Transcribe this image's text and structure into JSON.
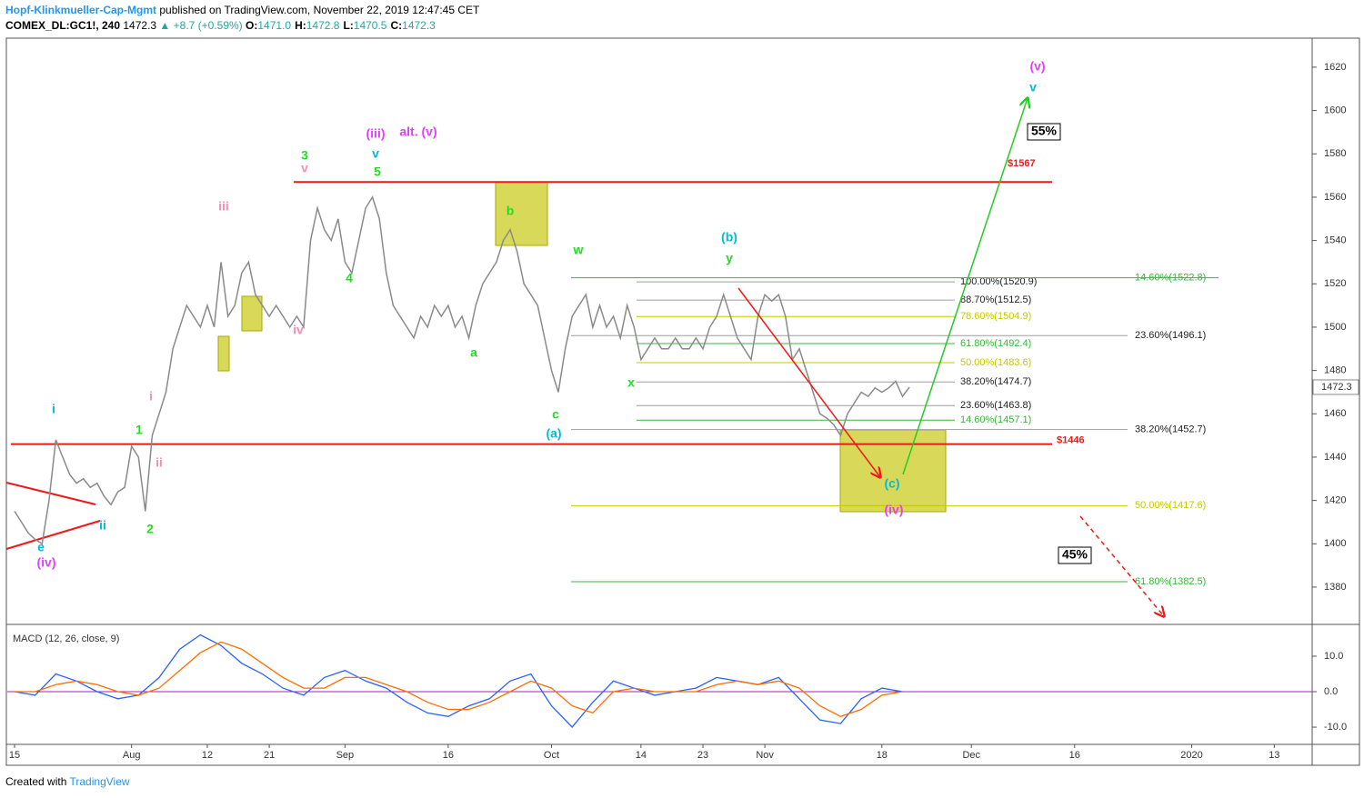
{
  "header": {
    "publisher": "Hopf-Klinkmueller-Cap-Mgmt",
    "published": "published on TradingView.com, November 22, 2019 12:47:45 CET",
    "symbol": "COMEX_DL:GC1!, 240",
    "last": "1472.3",
    "change": "▲ +8.7 (+0.59%)",
    "ohlc": [
      {
        "label": "O:",
        "value": "1471.0"
      },
      {
        "label": "H:",
        "value": "1472.8"
      },
      {
        "label": "L:",
        "value": "1470.5"
      },
      {
        "label": "C:",
        "value": "1472.3"
      }
    ]
  },
  "footer": {
    "text": "Created with",
    "brand": "TradingView"
  },
  "chart_data": [
    {
      "type": "line",
      "color": "#8a8a8a",
      "categories": [
        "15",
        null,
        null,
        null,
        null,
        null,
        null,
        null,
        null,
        null,
        null,
        null,
        null,
        null,
        null,
        null,
        null,
        "Aug",
        null,
        null,
        null,
        null,
        null,
        null,
        null,
        null,
        null,
        null,
        "12",
        null,
        null,
        null,
        null,
        null,
        null,
        null,
        null,
        "21",
        null,
        null,
        null,
        null,
        null,
        null,
        null,
        null,
        null,
        null,
        "Sep",
        null,
        null,
        null,
        null,
        null,
        null,
        null,
        null,
        null,
        null,
        null,
        null,
        null,
        null,
        "16",
        null,
        null,
        null,
        null,
        null,
        null,
        null,
        null,
        null,
        null,
        null,
        null,
        null,
        null,
        "Oct",
        null,
        null,
        null,
        null,
        null,
        null,
        null,
        null,
        null,
        null,
        null,
        null,
        "14",
        null,
        null,
        null,
        null,
        null,
        null,
        null,
        null,
        "23",
        null,
        null,
        null,
        null,
        null,
        null,
        null,
        null,
        "Nov",
        null,
        null,
        null,
        null,
        null,
        null,
        null,
        null,
        null,
        null,
        null,
        null,
        null,
        null,
        null,
        null,
        "18",
        null,
        null,
        null,
        null,
        null,
        null,
        null,
        null,
        null,
        null,
        null,
        null,
        "Dec",
        null,
        null,
        null,
        null,
        null,
        null,
        null,
        null,
        null,
        null,
        null,
        null,
        null,
        null,
        "16",
        null,
        null,
        null,
        null,
        null,
        null,
        null,
        null,
        null,
        null,
        null,
        null,
        null,
        null,
        null,
        null,
        "2020",
        null,
        null,
        null,
        null,
        null,
        null,
        null,
        null,
        null,
        null,
        null,
        "13"
      ],
      "values": [
        1415,
        1410,
        1405,
        1402,
        1400,
        1420,
        1448,
        1440,
        1432,
        1428,
        1430,
        1426,
        1428,
        1422,
        1418,
        1424,
        1426,
        1445,
        1440,
        1415,
        1450,
        1460,
        1470,
        1490,
        1500,
        1510,
        1505,
        1500,
        1510,
        1500,
        1530,
        1505,
        1510,
        1525,
        1530,
        1515,
        1510,
        1505,
        1510,
        1505,
        1500,
        1505,
        1500,
        1540,
        1555,
        1545,
        1540,
        1550,
        1530,
        1525,
        1540,
        1555,
        1560,
        1550,
        1525,
        1510,
        1505,
        1500,
        1495,
        1505,
        1500,
        1510,
        1505,
        1510,
        1500,
        1505,
        1495,
        1510,
        1520,
        1525,
        1530,
        1540,
        1545,
        1535,
        1520,
        1515,
        1510,
        1495,
        1480,
        1470,
        1490,
        1505,
        1510,
        1515,
        1500,
        1510,
        1500,
        1505,
        1495,
        1510,
        1500,
        1485,
        1490,
        1495,
        1490,
        1490,
        1495,
        1490,
        1490,
        1495,
        1490,
        1500,
        1505,
        1515,
        1505,
        1495,
        1490,
        1485,
        1505,
        1515,
        1512,
        1515,
        1505,
        1485,
        1490,
        1480,
        1470,
        1460,
        1458,
        1455,
        1450,
        1460,
        1465,
        1470,
        1468,
        1472,
        1470,
        1472,
        1475,
        1468,
        1472.3,
        null,
        null,
        null,
        null,
        null,
        null,
        null,
        null,
        null,
        null,
        null,
        null,
        null,
        null,
        null,
        null,
        null,
        null,
        null,
        null,
        null,
        null,
        null,
        null,
        null,
        null,
        null,
        null,
        null,
        null,
        null,
        null,
        null,
        null,
        null,
        null,
        null,
        null,
        null,
        null,
        null,
        null,
        null,
        null,
        null,
        null,
        null,
        null,
        null,
        null,
        null,
        null,
        null
      ],
      "last_price": 1472.3,
      "ylim": [
        1363.2,
        1633.4
      ],
      "yticks": [
        1380,
        1400,
        1420,
        1440,
        1460,
        1480,
        1500,
        1520,
        1540,
        1560,
        1580,
        1600,
        1620
      ],
      "levels": [
        {
          "label": "$1567",
          "value": 1567,
          "color": "#f01818"
        },
        {
          "label": "$1446",
          "value": 1446,
          "color": "#f01818"
        }
      ],
      "fib_levels": [
        {
          "label": "100.00%(1520.9)",
          "value": 1520.9,
          "color": "#9e9e9e"
        },
        {
          "label": "88.70%(1512.5)",
          "value": 1512.5,
          "color": "#9e9e9e"
        },
        {
          "label": "78.60%(1504.9)",
          "value": 1504.9,
          "color": "#c8c800"
        },
        {
          "label": "61.80%(1492.4)",
          "value": 1492.4,
          "color": "#3cb43c"
        },
        {
          "label": "50.00%(1483.6)",
          "value": 1483.6,
          "color": "#c8c800"
        },
        {
          "label": "38.20%(1474.7)",
          "value": 1474.7,
          "color": "#9e9e9e"
        },
        {
          "label": "23.60%(1463.8)",
          "value": 1463.8,
          "color": "#9e9e9e"
        },
        {
          "label": "14.60%(1457.1)",
          "value": 1457.1,
          "color": "#3cb43c"
        },
        {
          "label": "14.60%(1522.8)",
          "value": 1522.8,
          "color": "#3cb43c"
        },
        {
          "label": "23.60%(1496.1)",
          "value": 1496.1,
          "color": "#9e9e9e"
        },
        {
          "label": "38.20%(1452.7)",
          "value": 1452.7,
          "color": "#9e9e9e"
        },
        {
          "label": "50.00%(1417.6)",
          "value": 1417.6,
          "color": "#c8c800"
        },
        {
          "label": "61.80%(1382.5)",
          "value": 1382.5,
          "color": "#3cb43c"
        }
      ],
      "annotations": [
        {
          "text": "i",
          "color": "#00bcd4"
        },
        {
          "text": "ii",
          "color": "#00bcd4"
        },
        {
          "text": "e",
          "color": "#00bcd4"
        },
        {
          "text": "(iv)",
          "color": "#e040fb"
        },
        {
          "text": "1",
          "color": "#22dd22"
        },
        {
          "text": "2",
          "color": "#22dd22"
        },
        {
          "text": "i",
          "color": "#f48fb1"
        },
        {
          "text": "ii",
          "color": "#f48fb1"
        },
        {
          "text": "iii",
          "color": "#f48fb1"
        },
        {
          "text": "iv",
          "color": "#f48fb1"
        },
        {
          "text": "3",
          "color": "#22dd22"
        },
        {
          "text": "v",
          "color": "#f48fb1"
        },
        {
          "text": "(iii)",
          "color": "#e040fb"
        },
        {
          "text": "alt. (v)",
          "color": "#e040fb"
        },
        {
          "text": "v",
          "color": "#00bcd4"
        },
        {
          "text": "5",
          "color": "#22dd22"
        },
        {
          "text": "4",
          "color": "#22dd22"
        },
        {
          "text": "b",
          "color": "#22dd22"
        },
        {
          "text": "a",
          "color": "#22dd22"
        },
        {
          "text": "c",
          "color": "#22dd22"
        },
        {
          "text": "(a)",
          "color": "#00bcd4"
        },
        {
          "text": "w",
          "color": "#22dd22"
        },
        {
          "text": "x",
          "color": "#22dd22"
        },
        {
          "text": "(b)",
          "color": "#00bcd4"
        },
        {
          "text": "y",
          "color": "#22dd22"
        },
        {
          "text": "(c)",
          "color": "#00bcd4"
        },
        {
          "text": "(iv)",
          "color": "#e040fb"
        },
        {
          "text": "(v)",
          "color": "#e040fb"
        },
        {
          "text": "v",
          "color": "#00bcd4"
        },
        {
          "text": "55%",
          "color": "#000000"
        },
        {
          "text": "45%",
          "color": "#000000"
        }
      ]
    },
    {
      "type": "macd",
      "title": "MACD (12, 26, close, 9)",
      "categories": [
        null,
        null,
        null,
        null,
        null,
        null,
        null,
        null,
        null,
        null,
        null,
        null,
        null,
        null,
        null,
        null,
        null,
        null,
        null,
        null,
        null,
        null,
        null,
        null,
        null,
        null,
        null,
        null,
        null,
        null,
        null,
        null,
        null,
        null,
        null,
        null,
        null,
        null,
        null,
        null,
        null,
        null,
        null,
        null
      ],
      "series": [
        {
          "color": "#2962ff",
          "values": [
            0,
            -1,
            5,
            3,
            0,
            -2,
            -1,
            4,
            12,
            16,
            13,
            8,
            5,
            1,
            -1,
            4,
            6,
            3,
            1,
            -3,
            -6,
            -7,
            -4,
            -2,
            3,
            5,
            -4,
            -10,
            -3,
            3,
            1,
            -1,
            0,
            1,
            4,
            3,
            2,
            4,
            -2,
            -8,
            -9,
            -2,
            1,
            0
          ]
        },
        {
          "color": "#ff6d00",
          "values": [
            0,
            0,
            2,
            3,
            2,
            0,
            -1,
            1,
            6,
            11,
            14,
            12,
            8,
            4,
            1,
            1,
            4,
            4,
            2,
            0,
            -3,
            -5,
            -5,
            -3,
            0,
            3,
            1,
            -4,
            -6,
            0,
            1,
            0,
            0,
            0,
            2,
            3,
            2,
            3,
            1,
            -4,
            -7,
            -5,
            -1,
            0
          ]
        }
      ],
      "ylim": [
        -14.6,
        18.7
      ],
      "yticks": [
        {
          "value": 10,
          "label": "10.0"
        },
        {
          "value": 0,
          "label": "0.0"
        },
        {
          "value": -10,
          "label": "-10.0"
        }
      ]
    }
  ]
}
